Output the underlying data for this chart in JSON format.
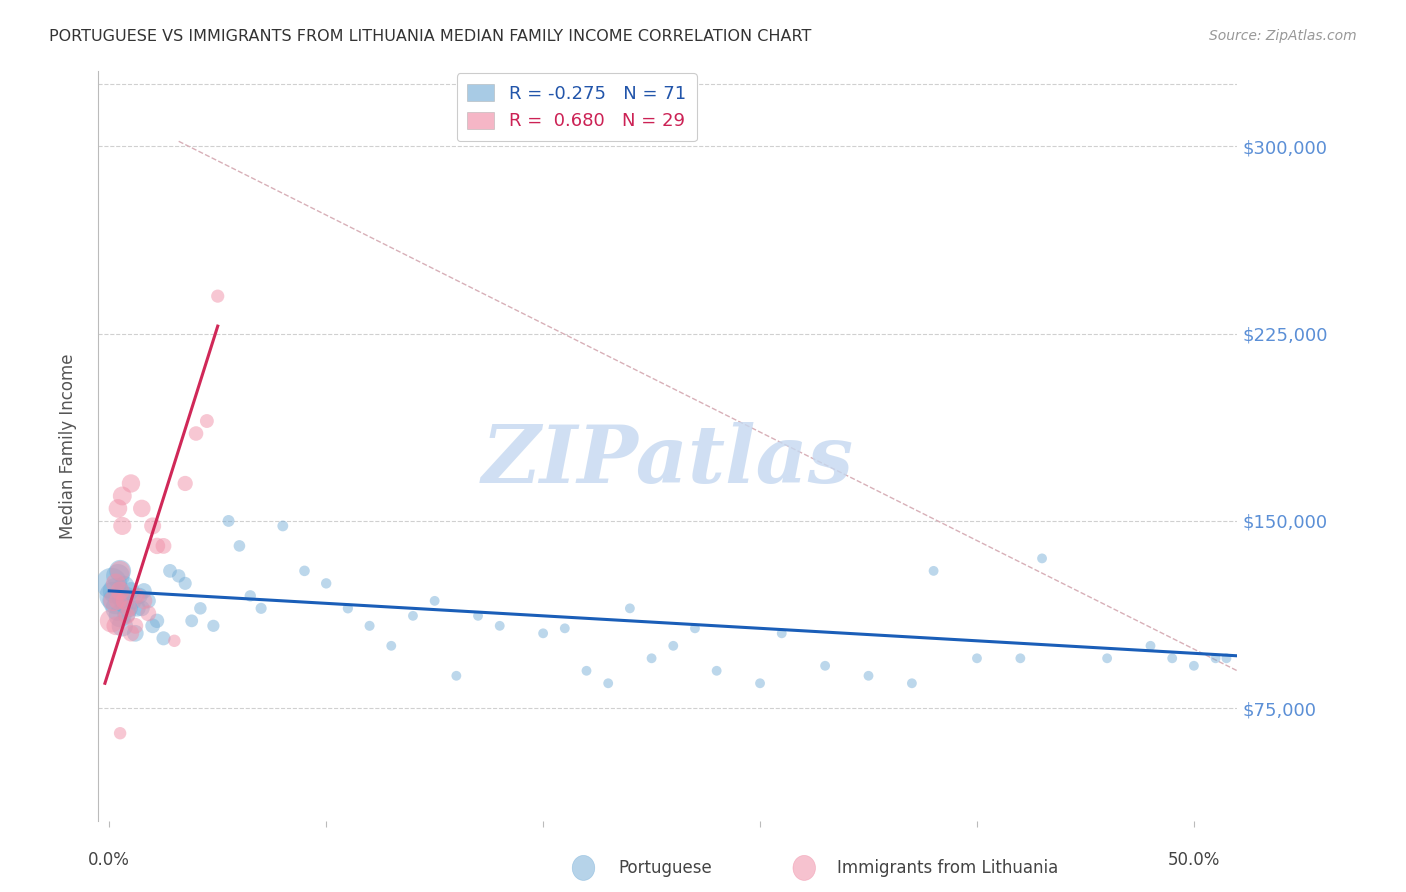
{
  "title": "PORTUGUESE VS IMMIGRANTS FROM LITHUANIA MEDIAN FAMILY INCOME CORRELATION CHART",
  "source": "Source: ZipAtlas.com",
  "ylabel": "Median Family Income",
  "yticks": [
    75000,
    150000,
    225000,
    300000
  ],
  "ytick_labels": [
    "$75,000",
    "$150,000",
    "$225,000",
    "$300,000"
  ],
  "ymin": 30000,
  "ymax": 330000,
  "xmin": -0.005,
  "xmax": 0.52,
  "watermark": "ZIPatlas",
  "watermark_color": "#c5d8f0",
  "blue_color": "#7ab0d8",
  "pink_color": "#f090a8",
  "blue_line_color": "#1a5eb8",
  "pink_line_color": "#d02858",
  "ref_line_color": "#d8b0b8",
  "background_color": "#ffffff",
  "blue_R": "-0.275",
  "blue_N": "71",
  "pink_R": "0.680",
  "pink_N": "29",
  "legend_label_blue": "Portuguese",
  "legend_label_pink": "Immigrants from Lithuania",
  "blue_dots_x": [
    0.001,
    0.002,
    0.003,
    0.003,
    0.004,
    0.004,
    0.005,
    0.005,
    0.006,
    0.006,
    0.007,
    0.007,
    0.008,
    0.008,
    0.009,
    0.01,
    0.011,
    0.012,
    0.013,
    0.014,
    0.015,
    0.016,
    0.018,
    0.02,
    0.022,
    0.025,
    0.028,
    0.032,
    0.035,
    0.038,
    0.042,
    0.048,
    0.055,
    0.06,
    0.065,
    0.07,
    0.08,
    0.09,
    0.1,
    0.11,
    0.12,
    0.13,
    0.14,
    0.15,
    0.16,
    0.17,
    0.18,
    0.2,
    0.21,
    0.22,
    0.23,
    0.24,
    0.25,
    0.26,
    0.27,
    0.28,
    0.3,
    0.31,
    0.33,
    0.35,
    0.37,
    0.38,
    0.4,
    0.42,
    0.43,
    0.46,
    0.48,
    0.49,
    0.5,
    0.51,
    0.515
  ],
  "blue_dots_y": [
    125000,
    120000,
    118000,
    122000,
    115000,
    128000,
    112000,
    130000,
    108000,
    119000,
    124000,
    117000,
    113000,
    120000,
    115000,
    122000,
    118000,
    105000,
    115000,
    120000,
    115000,
    122000,
    118000,
    108000,
    110000,
    103000,
    130000,
    128000,
    125000,
    110000,
    115000,
    108000,
    150000,
    140000,
    120000,
    115000,
    148000,
    130000,
    125000,
    115000,
    108000,
    100000,
    112000,
    118000,
    88000,
    112000,
    108000,
    105000,
    107000,
    90000,
    85000,
    115000,
    95000,
    100000,
    107000,
    90000,
    85000,
    105000,
    92000,
    88000,
    85000,
    130000,
    95000,
    95000,
    135000,
    95000,
    100000,
    95000,
    92000,
    95000,
    95000
  ],
  "blue_dots_size": [
    500,
    420,
    370,
    350,
    320,
    290,
    270,
    250,
    235,
    220,
    205,
    195,
    185,
    175,
    168,
    160,
    152,
    145,
    140,
    135,
    130,
    125,
    118,
    112,
    108,
    103,
    98,
    93,
    89,
    85,
    81,
    77,
    73,
    70,
    67,
    64,
    61,
    58,
    56,
    54,
    52,
    50,
    50,
    50,
    50,
    50,
    50,
    50,
    50,
    50,
    50,
    50,
    50,
    50,
    50,
    50,
    50,
    50,
    50,
    50,
    50,
    50,
    50,
    50,
    50,
    50,
    50,
    50,
    50,
    50,
    50
  ],
  "pink_dots_x": [
    0.001,
    0.002,
    0.003,
    0.003,
    0.004,
    0.004,
    0.005,
    0.005,
    0.006,
    0.006,
    0.007,
    0.008,
    0.009,
    0.01,
    0.01,
    0.012,
    0.013,
    0.015,
    0.016,
    0.018,
    0.02,
    0.022,
    0.025,
    0.03,
    0.035,
    0.04,
    0.045,
    0.05,
    0.005
  ],
  "pink_dots_y": [
    110000,
    118000,
    125000,
    108000,
    155000,
    118000,
    130000,
    122000,
    160000,
    148000,
    118000,
    112000,
    115000,
    165000,
    105000,
    108000,
    120000,
    155000,
    118000,
    113000,
    148000,
    140000,
    140000,
    102000,
    165000,
    185000,
    190000,
    240000,
    65000
  ],
  "pink_dots_size": [
    280,
    220,
    200,
    180,
    180,
    165,
    205,
    185,
    185,
    170,
    160,
    145,
    140,
    175,
    140,
    130,
    120,
    160,
    145,
    130,
    150,
    140,
    130,
    80,
    120,
    110,
    100,
    90,
    80
  ],
  "blue_line_x0": 0.0,
  "blue_line_x1": 0.52,
  "blue_line_y0": 122000,
  "blue_line_y1": 96000,
  "pink_line_x0": -0.002,
  "pink_line_x1": 0.05,
  "pink_line_y0": 85000,
  "pink_line_y1": 228000,
  "ref_line_x0": 0.032,
  "ref_line_x1": 0.52,
  "ref_line_y0": 302000,
  "ref_line_y1": 90000
}
